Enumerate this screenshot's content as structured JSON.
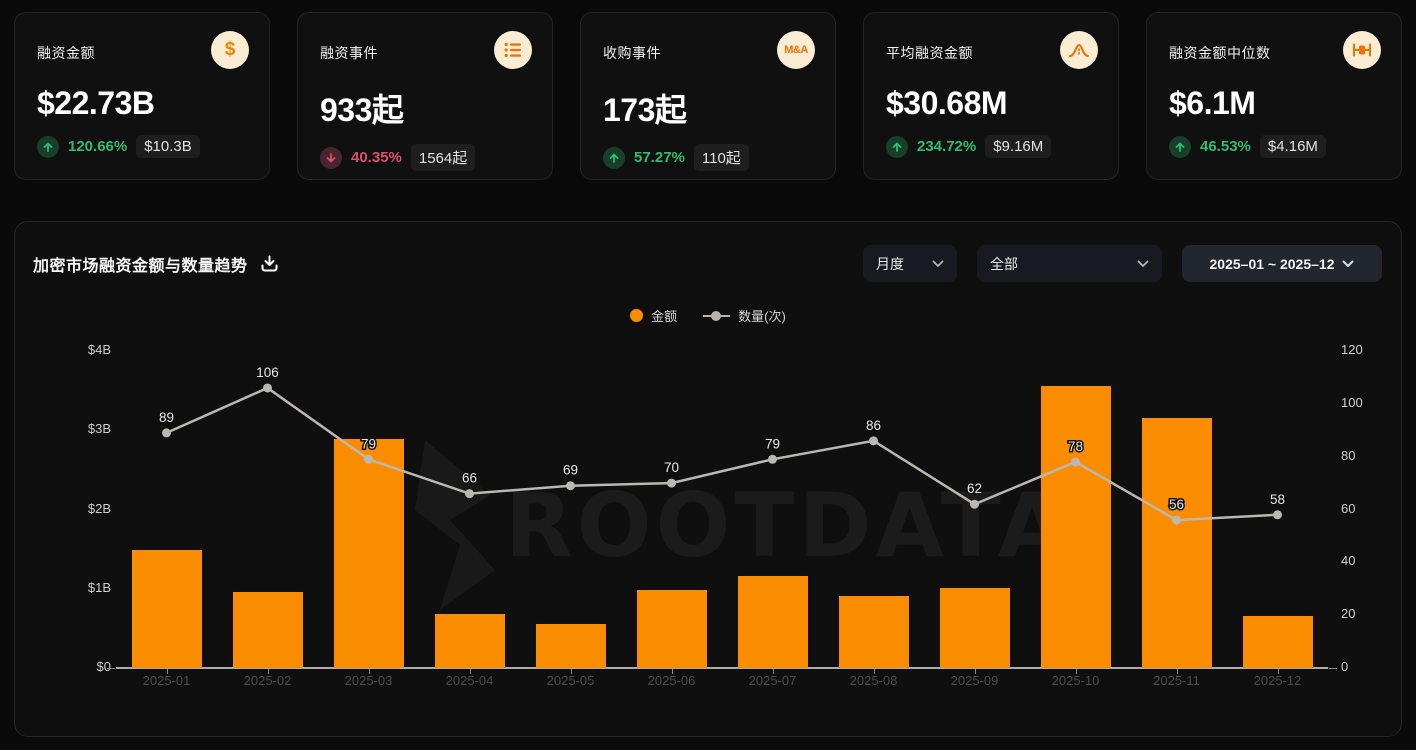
{
  "cards": [
    {
      "title": "融资金额",
      "icon": "dollar-icon",
      "icon_text": "$",
      "value": "$22.73B",
      "change_dir": "up",
      "change_pct": "120.66%",
      "prev_value": "$10.3B"
    },
    {
      "title": "融资事件",
      "icon": "list-icon",
      "value": "933起",
      "change_dir": "down",
      "change_pct": "40.35%",
      "prev_value": "1564起"
    },
    {
      "title": "收购事件",
      "icon": "ma-icon",
      "icon_text": "M&A",
      "value": "173起",
      "change_dir": "up",
      "change_pct": "57.27%",
      "prev_value": "110起"
    },
    {
      "title": "平均融资金额",
      "icon": "curve-icon",
      "value": "$30.68M",
      "change_dir": "up",
      "change_pct": "234.72%",
      "prev_value": "$9.16M"
    },
    {
      "title": "融资金额中位数",
      "icon": "median-icon",
      "value": "$6.1M",
      "change_dir": "up",
      "change_pct": "46.53%",
      "prev_value": "$4.16M"
    }
  ],
  "chart_panel": {
    "title": "加密市场融资金额与数量趋势",
    "controls": {
      "period": "月度",
      "category": "全部",
      "date_range": "2025–01  ~  2025–12"
    },
    "legend": [
      {
        "label": "金额"
      },
      {
        "label": "数量(次)"
      }
    ],
    "watermark": "ROOTDATA"
  },
  "chart_data": {
    "type": "bar+line",
    "categories": [
      "2025-01",
      "2025-02",
      "2025-03",
      "2025-04",
      "2025-05",
      "2025-06",
      "2025-07",
      "2025-08",
      "2025-09",
      "2025-10",
      "2025-11",
      "2025-12"
    ],
    "series": [
      {
        "name": "金额",
        "type": "bar",
        "unit": "$B",
        "axis": "left",
        "color": "#fa8c00",
        "values": [
          1.49,
          0.96,
          2.89,
          0.68,
          0.56,
          0.99,
          1.16,
          0.91,
          1.01,
          3.56,
          3.16,
          0.66
        ]
      },
      {
        "name": "数量(次)",
        "type": "line",
        "axis": "right",
        "color": "#bcb7b0",
        "values": [
          89,
          106,
          79,
          66,
          69,
          70,
          79,
          86,
          62,
          78,
          56,
          58
        ]
      }
    ],
    "left_axis": {
      "ticks": [
        "$4B",
        "$3B",
        "$2B",
        "$1B",
        "$0"
      ],
      "min": 0,
      "max": 4,
      "grid": false
    },
    "right_axis": {
      "ticks": [
        "120",
        "100",
        "80",
        "60",
        "40",
        "20",
        "0"
      ],
      "min": 0,
      "max": 120
    },
    "legend_position": "top-center",
    "title": "加密市场融资金额与数量趋势"
  },
  "colors": {
    "accent_orange": "#fa8c00",
    "up_green": "#2ebd71",
    "down_red": "#dd5068",
    "line_gray": "#bcb7b0"
  }
}
